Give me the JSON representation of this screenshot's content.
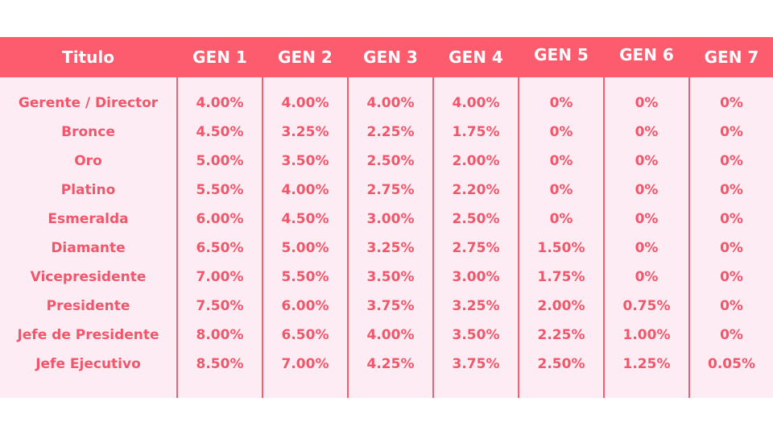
{
  "colors": {
    "header_bg": "#fd5c6f",
    "body_bg": "#fdecf3",
    "text": "#f2566b"
  },
  "headers": [
    "Titulo",
    "GEN 1",
    "GEN 2",
    "GEN 3",
    "GEN 4",
    "GEN 5",
    "GEN 6",
    "GEN 7"
  ],
  "rows": [
    [
      "Gerente / Director",
      "4.00%",
      "4.00%",
      "4.00%",
      "4.00%",
      "0%",
      "0%",
      "0%"
    ],
    [
      "Bronce",
      "4.50%",
      "3.25%",
      "2.25%",
      "1.75%",
      "0%",
      "0%",
      "0%"
    ],
    [
      "Oro",
      "5.00%",
      "3.50%",
      "2.50%",
      "2.00%",
      "0%",
      "0%",
      "0%"
    ],
    [
      "Platino",
      "5.50%",
      "4.00%",
      "2.75%",
      "2.20%",
      "0%",
      "0%",
      "0%"
    ],
    [
      "Esmeralda",
      "6.00%",
      "4.50%",
      "3.00%",
      "2.50%",
      "0%",
      "0%",
      "0%"
    ],
    [
      "Diamante",
      "6.50%",
      "5.00%",
      "3.25%",
      "2.75%",
      "1.50%",
      "0%",
      "0%"
    ],
    [
      "Vicepresidente",
      "7.00%",
      "5.50%",
      "3.50%",
      "3.00%",
      "1.75%",
      "0%",
      "0%"
    ],
    [
      "Presidente",
      "7.50%",
      "6.00%",
      "3.75%",
      "3.25%",
      "2.00%",
      "0.75%",
      "0%"
    ],
    [
      "Jefe de Presidente",
      "8.00%",
      "6.50%",
      "4.00%",
      "3.50%",
      "2.25%",
      "1.00%",
      "0%"
    ],
    [
      "Jefe Ejecutivo",
      "8.50%",
      "7.00%",
      "4.25%",
      "3.75%",
      "2.50%",
      "1.25%",
      "0.05%"
    ]
  ]
}
